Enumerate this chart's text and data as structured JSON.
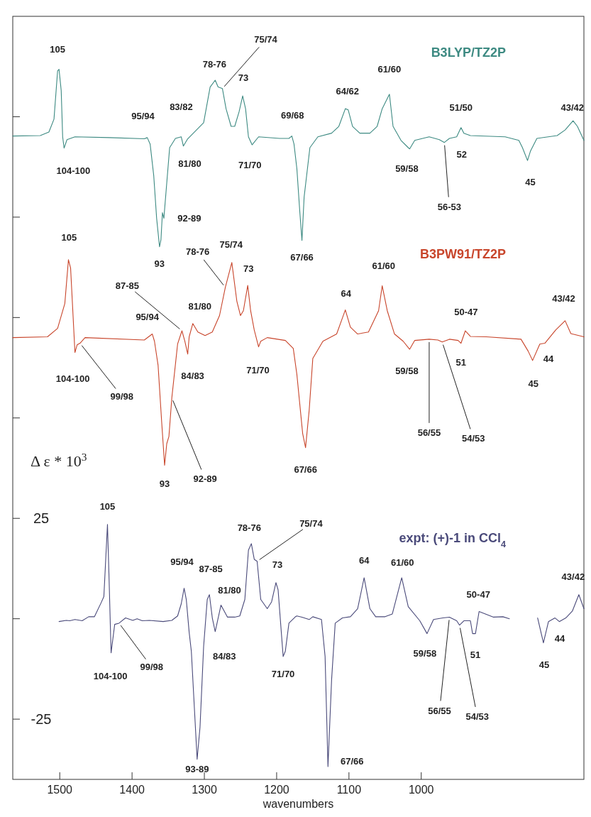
{
  "chart_data": {
    "type": "line",
    "xlabel": "wavenumbers",
    "ylabel": "Δ ε * 10$^{3}$",
    "xlim": [
      1565,
      775
    ],
    "xticks": [
      1500,
      1400,
      1300,
      1200,
      1100,
      1000
    ],
    "ylim": [
      -40,
      150
    ],
    "yticks": [
      {
        "value": 125,
        "label": null
      },
      {
        "value": 100,
        "label": null
      },
      {
        "value": 75,
        "label": null
      },
      {
        "value": 50,
        "label": null
      },
      25,
      {
        "value": 0,
        "label": null
      },
      -25
    ],
    "series": [
      {
        "name": "B3LYP/TZ2P",
        "color": "#3d8a82",
        "x": [
          1565,
          1527,
          1515,
          1508,
          1503,
          1501,
          1498,
          1496,
          1494,
          1490,
          1479,
          1431,
          1383,
          1379,
          1375,
          1370,
          1366,
          1362,
          1360,
          1358,
          1356,
          1352,
          1348,
          1340,
          1332,
          1329,
          1323,
          1301,
          1292,
          1285,
          1281,
          1275,
          1270,
          1263,
          1258,
          1252,
          1247,
          1243,
          1239,
          1234,
          1225,
          1196,
          1183,
          1179,
          1176,
          1172,
          1168,
          1165,
          1162,
          1154,
          1143,
          1124,
          1114,
          1105,
          1101,
          1095,
          1085,
          1071,
          1061,
          1054,
          1044,
          1039,
          1028,
          1018,
          1016,
          1009,
          989,
          975,
          968,
          961,
          951,
          945,
          941,
          932,
          884,
          865,
          860,
          853,
          849,
          840,
          812,
          801,
          790,
          784,
          775
        ],
        "values": [
          120.2,
          120.3,
          121.2,
          124.4,
          136.4,
          136.8,
          131.5,
          120.0,
          117.2,
          119.3,
          120.0,
          119.8,
          119.5,
          119.8,
          118.2,
          110.3,
          99.7,
          92.6,
          94.4,
          101.1,
          99.7,
          108.5,
          117.3,
          119.6,
          120.0,
          117.7,
          119.5,
          123.5,
          132.4,
          134.1,
          132.4,
          132.0,
          127.0,
          122.6,
          122.6,
          126.2,
          130.2,
          127.0,
          120.0,
          118.0,
          120.0,
          119.6,
          119.6,
          120.2,
          118.2,
          112.0,
          101.4,
          94.2,
          105.0,
          117.3,
          120.0,
          120.9,
          122.6,
          127.0,
          126.7,
          122.6,
          120.9,
          120.9,
          122.6,
          127.0,
          130.6,
          122.6,
          119.1,
          117.3,
          117.0,
          119.1,
          120.0,
          119.3,
          118.6,
          119.6,
          120.0,
          122.3,
          120.9,
          120.3,
          120.0,
          119.1,
          117.3,
          114.1,
          116.4,
          119.6,
          120.3,
          121.7,
          124.0,
          122.6,
          119.1
        ]
      },
      {
        "name": "B3PW91/TZ2P",
        "color": "#c8452b",
        "x": [
          1565,
          1517,
          1503,
          1493,
          1488,
          1485,
          1479,
          1476,
          1472,
          1465,
          1383,
          1372,
          1369,
          1364,
          1359,
          1355,
          1352,
          1349,
          1345,
          1337,
          1331,
          1327,
          1323,
          1321,
          1316,
          1309,
          1299,
          1289,
          1279,
          1271,
          1262,
          1255,
          1250,
          1246,
          1240,
          1236,
          1231,
          1225,
          1222,
          1213,
          1188,
          1177,
          1172,
          1164,
          1160,
          1155,
          1150,
          1136,
          1117,
          1109,
          1105,
          1098,
          1088,
          1073,
          1059,
          1054,
          1047,
          1037,
          1025,
          1016,
          1009,
          989,
          977,
          971,
          961,
          949,
          945,
          939,
          932,
          910,
          862,
          852,
          846,
          836,
          829,
          814,
          801,
          793,
          775
        ],
        "values": [
          70.0,
          70.2,
          72.3,
          78.5,
          89.4,
          87.3,
          66.3,
          68.2,
          68.6,
          70.0,
          69.4,
          70.9,
          69.1,
          63.1,
          48.9,
          38.2,
          43.6,
          45.4,
          55.0,
          68.4,
          71.7,
          69.1,
          65.9,
          70.2,
          73.5,
          71.4,
          70.5,
          71.4,
          75.5,
          82.5,
          88.7,
          79.0,
          75.5,
          76.7,
          83.0,
          76.7,
          71.9,
          67.7,
          69.1,
          70.0,
          69.3,
          67.3,
          60.8,
          46.1,
          42.6,
          51.9,
          64.8,
          69.1,
          70.9,
          74.9,
          76.9,
          72.6,
          70.9,
          71.4,
          76.7,
          82.9,
          76.7,
          70.9,
          69.1,
          67.1,
          69.3,
          69.6,
          69.4,
          68.9,
          69.6,
          69.3,
          68.6,
          71.7,
          70.3,
          70.2,
          69.6,
          66.6,
          64.3,
          68.4,
          68.6,
          71.9,
          74.2,
          71.0,
          70.2
        ]
      },
      {
        "name": "expt: (+)-1 in CCl$_{4}$",
        "color": "#4a4a7a",
        "x": [
          1501,
          1491,
          1486,
          1479,
          1469,
          1460,
          1452,
          1443,
          1439,
          1434,
          1432,
          1429,
          1424,
          1418,
          1409,
          1399,
          1393,
          1386,
          1376,
          1357,
          1345,
          1337,
          1332,
          1328,
          1325,
          1321,
          1318,
          1310,
          1306,
          1301,
          1296,
          1293,
          1289,
          1285,
          1277,
          1268,
          1258,
          1251,
          1244,
          1239,
          1235,
          1231,
          1227,
          1222,
          1213,
          1207,
          1201,
          1198,
          1191,
          1188,
          1183,
          1174,
          1172,
          1165,
          1155,
          1150,
          1138,
          1133,
          1129,
          1124,
          1119,
          1109,
          1098,
          1088,
          1079,
          1071,
          1063,
          1050,
          1040,
          1027,
          1018,
          1002,
          992,
          983,
          970,
          961,
          951,
          947,
          941,
          932,
          929,
          925,
          920,
          910,
          900,
          887,
          878,
          860,
          839,
          831,
          824,
          815,
          809,
          800,
          791,
          782,
          775
        ],
        "values": [
          -0.7,
          -0.4,
          -0.5,
          -0.2,
          -0.5,
          0.5,
          0.5,
          3.9,
          5.5,
          23.5,
          11.3,
          -8.5,
          -1.4,
          -1.1,
          0.2,
          -0.4,
          0,
          -0.5,
          -0.4,
          -0.7,
          -0.4,
          0.7,
          3.7,
          7.6,
          4.8,
          -3.4,
          -8.1,
          -35.0,
          -27.0,
          -6.9,
          4.8,
          6.0,
          0.2,
          -3.2,
          3.4,
          0.4,
          0.4,
          0.7,
          4.8,
          17.1,
          18.7,
          14.8,
          14.3,
          4.8,
          2.5,
          4.2,
          9.0,
          7.2,
          -9.4,
          -8.1,
          -1.1,
          0.5,
          0.7,
          0.4,
          -0.2,
          0.5,
          -0.2,
          -9.4,
          -36.8,
          -15.2,
          -1.1,
          0.2,
          0.5,
          2.5,
          10.2,
          2.5,
          0.5,
          0.5,
          1.2,
          10.2,
          3.0,
          -0.5,
          -3.7,
          -0.2,
          0.2,
          0.4,
          -0.5,
          -1.6,
          -0.5,
          -0.5,
          -3.7,
          -3.7,
          1.8,
          1.1,
          0.4,
          0.5,
          0,
          null,
          0.2,
          -6.0,
          -0.7,
          0.2,
          -0.7,
          0.2,
          1.9,
          6.0,
          2.5
        ]
      }
    ],
    "annotations": [
      {
        "text": "105",
        "x": 1501,
        "y": 136.8
      },
      {
        "text": "95/94",
        "x": 1379,
        "y": 119.8
      },
      {
        "text": "83/82",
        "x": 1332,
        "y": 120.0
      },
      {
        "text": "78-76",
        "x": 1285,
        "y": 134.1
      },
      {
        "text": "75/74",
        "x": 1275,
        "y": 132.0
      },
      {
        "text": "73",
        "x": 1247,
        "y": 130.2
      },
      {
        "text": "69/68",
        "x": 1179,
        "y": 120.2
      },
      {
        "text": "64/62",
        "x": 1105,
        "y": 127.0
      },
      {
        "text": "61/60",
        "x": 1044,
        "y": 130.6
      },
      {
        "text": "51/50",
        "x": 945,
        "y": 122.3
      },
      {
        "text": "43/42",
        "x": 790,
        "y": 124.0
      },
      {
        "text": "104-100",
        "x": 1494,
        "y": 117.2
      },
      {
        "text": "81/80",
        "x": 1329,
        "y": 117.7
      },
      {
        "text": "71/70",
        "x": 1234,
        "y": 118.0
      },
      {
        "text": "59/58",
        "x": 1016,
        "y": 117.0
      },
      {
        "text": "52",
        "x": 941,
        "y": 120.9
      },
      {
        "text": "56-53",
        "x": 968,
        "y": 118.6
      },
      {
        "text": "45",
        "x": 853,
        "y": 114.1
      },
      {
        "text": "92-89",
        "x": 1356,
        "y": 99.7
      },
      {
        "text": "93",
        "x": 1362,
        "y": 92.6
      },
      {
        "text": "67/66",
        "x": 1165,
        "y": 94.2
      },
      {
        "text": "105",
        "x": 1488,
        "y": 89.4
      },
      {
        "text": "78-76",
        "x": 1271,
        "y": 82.5
      },
      {
        "text": "75/74",
        "x": 1262,
        "y": 88.7
      },
      {
        "text": "73",
        "x": 1240,
        "y": 83.0
      },
      {
        "text": "87-85",
        "x": 1331,
        "y": 71.7
      },
      {
        "text": "95/94",
        "x": 1372,
        "y": 70.9
      },
      {
        "text": "81/80",
        "x": 1316,
        "y": 73.5
      },
      {
        "text": "64",
        "x": 1105,
        "y": 76.9
      },
      {
        "text": "61/60",
        "x": 1054,
        "y": 82.9
      },
      {
        "text": "50-47",
        "x": 939,
        "y": 71.7
      },
      {
        "text": "43/42",
        "x": 801,
        "y": 74.2
      },
      {
        "text": "104-100",
        "x": 1479,
        "y": 66.3
      },
      {
        "text": "99/98",
        "x": 1472,
        "y": 68.6
      },
      {
        "text": "84/83",
        "x": 1323,
        "y": 65.9
      },
      {
        "text": "71/70",
        "x": 1225,
        "y": 67.7
      },
      {
        "text": "59/58",
        "x": 1016,
        "y": 67.1
      },
      {
        "text": "51",
        "x": 945,
        "y": 68.6
      },
      {
        "text": "44",
        "x": 829,
        "y": 68.6
      },
      {
        "text": "45",
        "x": 846,
        "y": 64.3
      },
      {
        "text": "56/55",
        "x": 989,
        "y": 69.6
      },
      {
        "text": "54/53",
        "x": 971,
        "y": 68.9
      },
      {
        "text": "93",
        "x": 1355,
        "y": 38.2
      },
      {
        "text": "92-89",
        "x": 1345,
        "y": 55.0
      },
      {
        "text": "67/66",
        "x": 1160,
        "y": 42.6
      },
      {
        "text": "105",
        "x": 1434,
        "y": 23.5
      },
      {
        "text": "78-76",
        "x": 1235,
        "y": 18.7
      },
      {
        "text": "75/74",
        "x": 1227,
        "y": 14.3
      },
      {
        "text": "73",
        "x": 1201,
        "y": 9.0
      },
      {
        "text": "95/94",
        "x": 1328,
        "y": 7.6
      },
      {
        "text": "87-85",
        "x": 1293,
        "y": 6.0
      },
      {
        "text": "81/80",
        "x": 1277,
        "y": 3.4
      },
      {
        "text": "64",
        "x": 1079,
        "y": 10.2
      },
      {
        "text": "61/60",
        "x": 1027,
        "y": 10.2
      },
      {
        "text": "50-47",
        "x": 920,
        "y": 1.8
      },
      {
        "text": "43/42",
        "x": 782,
        "y": 6.0
      },
      {
        "text": "104-100",
        "x": 1429,
        "y": -8.5
      },
      {
        "text": "99/98",
        "x": 1418,
        "y": -1.1
      },
      {
        "text": "84/83",
        "x": 1285,
        "y": -3.2
      },
      {
        "text": "71/70",
        "x": 1191,
        "y": -9.4
      },
      {
        "text": "59/58",
        "x": 992,
        "y": -3.7
      },
      {
        "text": "51",
        "x": 929,
        "y": -3.7
      },
      {
        "text": "44",
        "x": 824,
        "y": -0.7
      },
      {
        "text": "45",
        "x": 831,
        "y": -6.0
      },
      {
        "text": "56/55",
        "x": 961,
        "y": 0.4
      },
      {
        "text": "54/53",
        "x": 947,
        "y": -1.6
      },
      {
        "text": "93-89",
        "x": 1310,
        "y": -35.0
      },
      {
        "text": "67/66",
        "x": 1129,
        "y": -36.8
      }
    ]
  }
}
